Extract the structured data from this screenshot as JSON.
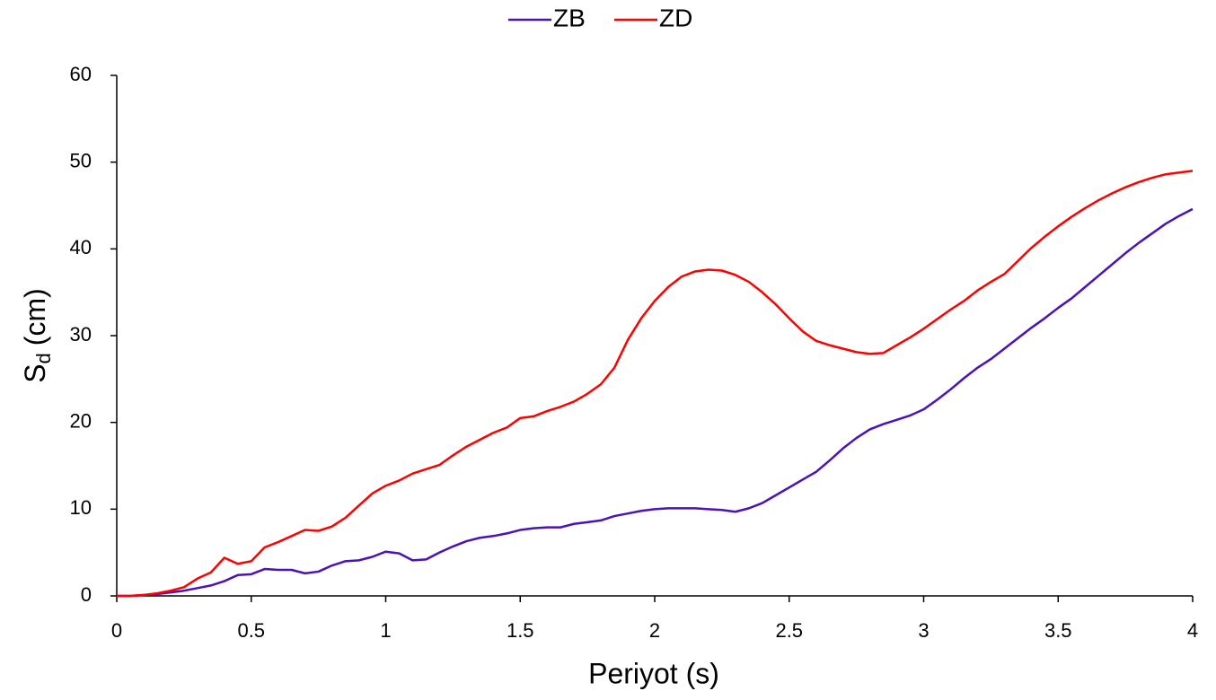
{
  "chart_data": {
    "type": "line",
    "xlabel": "Periyot (s)",
    "ylabel_parts": [
      "S",
      "d",
      "(cm)"
    ],
    "x": [
      0,
      0.05,
      0.1,
      0.15,
      0.2,
      0.25,
      0.3,
      0.35,
      0.4,
      0.45,
      0.5,
      0.55,
      0.6,
      0.65,
      0.7,
      0.75,
      0.8,
      0.85,
      0.9,
      0.95,
      1,
      1.05,
      1.1,
      1.15,
      1.2,
      1.25,
      1.3,
      1.35,
      1.4,
      1.45,
      1.5,
      1.55,
      1.6,
      1.65,
      1.7,
      1.75,
      1.8,
      1.85,
      1.9,
      1.95,
      2,
      2.05,
      2.1,
      2.15,
      2.2,
      2.25,
      2.3,
      2.35,
      2.4,
      2.45,
      2.5,
      2.55,
      2.6,
      2.65,
      2.7,
      2.75,
      2.8,
      2.85,
      2.9,
      2.95,
      3,
      3.05,
      3.1,
      3.15,
      3.2,
      3.25,
      3.3,
      3.35,
      3.4,
      3.45,
      3.5,
      3.55,
      3.6,
      3.65,
      3.7,
      3.75,
      3.8,
      3.85,
      3.9,
      3.95,
      4
    ],
    "series": [
      {
        "name": "ZB",
        "color": "#4a12b8",
        "values": [
          0,
          0,
          0.1,
          0.2,
          0.4,
          0.6,
          0.9,
          1.2,
          1.7,
          2.4,
          2.5,
          3.1,
          3.0,
          3.0,
          2.6,
          2.8,
          3.5,
          4.0,
          4.1,
          4.5,
          5.1,
          4.9,
          4.1,
          4.2,
          5.0,
          5.7,
          6.3,
          6.7,
          6.9,
          7.2,
          7.6,
          7.8,
          7.9,
          7.9,
          8.3,
          8.5,
          8.7,
          9.2,
          9.5,
          9.8,
          10.0,
          10.1,
          10.1,
          10.1,
          10.0,
          9.9,
          9.7,
          10.1,
          10.7,
          11.6,
          12.5,
          13.4,
          14.3,
          15.6,
          17.0,
          18.2,
          19.2,
          19.8,
          20.3,
          20.8,
          21.5,
          22.6,
          23.8,
          25.1,
          26.3,
          27.3,
          28.5,
          29.7,
          30.9,
          32.0,
          33.2,
          34.3,
          35.6,
          36.9,
          38.2,
          39.5,
          40.7,
          41.8,
          42.9,
          43.8,
          44.6
        ]
      },
      {
        "name": "ZD",
        "color": "#ff0000",
        "values": [
          0,
          0,
          0.1,
          0.3,
          0.6,
          1.0,
          2.0,
          2.7,
          4.4,
          3.7,
          4.0,
          5.6,
          6.2,
          6.9,
          7.6,
          7.5,
          8.0,
          9.0,
          10.4,
          11.8,
          12.7,
          13.3,
          14.1,
          14.6,
          15.1,
          16.2,
          17.2,
          18.0,
          18.8,
          19.4,
          20.5,
          20.7,
          21.3,
          21.8,
          22.4,
          23.3,
          24.4,
          26.3,
          29.5,
          32.0,
          34.0,
          35.6,
          36.8,
          37.4,
          37.6,
          37.5,
          37.0,
          36.2,
          35.0,
          33.6,
          32.0,
          30.5,
          29.4,
          28.9,
          28.5,
          28.1,
          27.9,
          28.0,
          28.9,
          29.8,
          30.8,
          31.9,
          33.0,
          34.0,
          35.2,
          36.2,
          37.1,
          38.6,
          40.1,
          41.4,
          42.6,
          43.7,
          44.7,
          45.6,
          46.4,
          47.1,
          47.7,
          48.2,
          48.6,
          48.8,
          49.0
        ]
      }
    ],
    "xlim": [
      0,
      4
    ],
    "xticks": [
      0,
      0.5,
      1,
      1.5,
      2,
      2.5,
      3,
      3.5,
      4
    ],
    "ylim": [
      0,
      60
    ],
    "yticks": [
      0,
      10,
      20,
      30,
      40,
      50,
      60
    ],
    "grid": false,
    "legend": "top"
  }
}
